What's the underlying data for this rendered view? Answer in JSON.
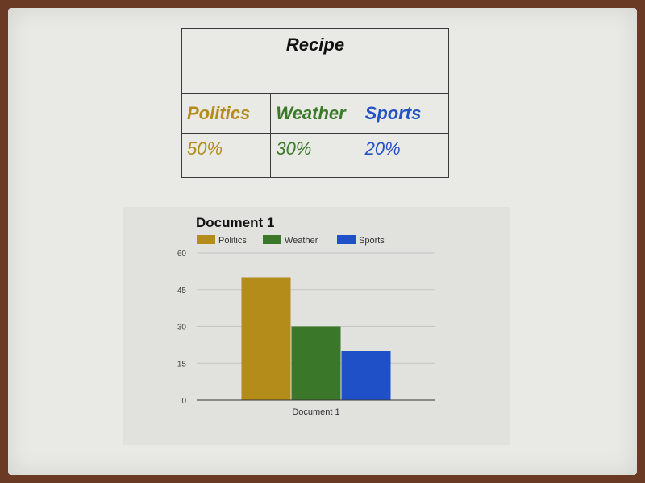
{
  "table": {
    "title": "Recipe",
    "columns": [
      {
        "label": "Politics",
        "value": "50%",
        "color": "#b48c1a"
      },
      {
        "label": "Weather",
        "value": "30%",
        "color": "#3a7a28"
      },
      {
        "label": "Sports",
        "value": "20%",
        "color": "#2452c4"
      }
    ]
  },
  "chart_data": {
    "type": "bar",
    "title": "Document 1",
    "categories": [
      "Document 1"
    ],
    "series": [
      {
        "name": "Politics",
        "values": [
          50
        ],
        "color": "#b48c1a"
      },
      {
        "name": "Weather",
        "values": [
          30
        ],
        "color": "#3b7728"
      },
      {
        "name": "Sports",
        "values": [
          20
        ],
        "color": "#2050c8"
      }
    ],
    "ylim": [
      0,
      60
    ],
    "yticks": [
      "0",
      "15",
      "30",
      "45",
      "60"
    ],
    "xlabel": "",
    "ylabel": "",
    "grid": true,
    "legend": "top-left"
  }
}
